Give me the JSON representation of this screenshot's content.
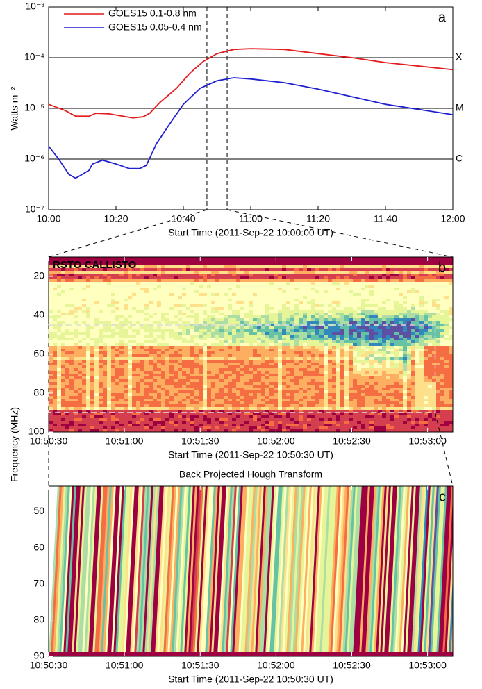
{
  "chart_data": [
    {
      "type": "line",
      "panel_label": "a",
      "log_y": true,
      "y_label": "Watts m⁻²",
      "x_label": "Start Time (2011-Sep-22 10:00:00 UT)",
      "xlim": [
        "10:00",
        "12:00"
      ],
      "xticks": [
        "10:00",
        "10:20",
        "10:40",
        "11:00",
        "11:20",
        "11:40",
        "12:00"
      ],
      "ylim": [
        1e-07,
        0.001
      ],
      "yticks": [
        {
          "value": 1e-07,
          "label": "10⁻⁷"
        },
        {
          "value": 1e-06,
          "label": "10⁻⁶"
        },
        {
          "value": 1e-05,
          "label": "10⁻⁵"
        },
        {
          "value": 0.0001,
          "label": "10⁻⁴"
        },
        {
          "value": 0.001,
          "label": "10⁻³"
        }
      ],
      "class_labels": [
        {
          "value": 0.0001,
          "label": "X"
        },
        {
          "value": 1e-05,
          "label": "M"
        },
        {
          "value": 1e-06,
          "label": "C"
        }
      ],
      "markers_x": [
        "10:47",
        "10:53"
      ],
      "series": [
        {
          "name": "GOES15 0.1-0.8 nm",
          "color": "#e41a1c",
          "x": [
            "10:00",
            "10:05",
            "10:08",
            "10:12",
            "10:14",
            "10:18",
            "10:22",
            "10:25",
            "10:28",
            "10:30",
            "10:33",
            "10:38",
            "10:42",
            "10:46",
            "10:50",
            "10:55",
            "11:00",
            "11:10",
            "11:20",
            "11:30",
            "11:40",
            "11:50",
            "12:00"
          ],
          "values": [
            1.2e-05,
            9e-06,
            7e-06,
            7e-06,
            8e-06,
            7.8e-06,
            7e-06,
            6.5e-06,
            6.8e-06,
            8e-06,
            1.3e-05,
            2.5e-05,
            5e-05,
            8.5e-05,
            0.00012,
            0.000145,
            0.00015,
            0.000145,
            0.00012,
            0.0001,
            8e-05,
            6.8e-05,
            5.8e-05
          ]
        },
        {
          "name": "GOES15 0.05-0.4 nm",
          "color": "#1f1fd0",
          "x": [
            "10:00",
            "10:03",
            "10:06",
            "10:08",
            "10:10",
            "10:12",
            "10:13",
            "10:16",
            "10:20",
            "10:24",
            "10:27",
            "10:29",
            "10:32",
            "10:36",
            "10:40",
            "10:45",
            "10:50",
            "10:55",
            "11:00",
            "11:10",
            "11:20",
            "11:30",
            "11:40",
            "11:50",
            "12:00"
          ],
          "values": [
            1.8e-06,
            1e-06,
            5e-07,
            4.2e-07,
            5e-07,
            6e-07,
            8e-07,
            9.5e-07,
            8e-07,
            6.5e-07,
            6.5e-07,
            7.5e-07,
            2e-06,
            5e-06,
            1.2e-05,
            2.5e-05,
            3.5e-05,
            4e-05,
            3.8e-05,
            3.2e-05,
            2.4e-05,
            1.7e-05,
            1.2e-05,
            9.5e-06,
            7.5e-06
          ]
        }
      ]
    },
    {
      "type": "heatmap",
      "panel_label": "b",
      "annotation": "RSTO CALLISTO",
      "x_label": "Start Time (2011-Sep-22 10:50:30 UT)",
      "xlim": [
        "10:50:30",
        "10:53:10"
      ],
      "xticks": [
        "10:50:30",
        "10:51:00",
        "10:51:30",
        "10:52:00",
        "10:52:30",
        "10:53:00"
      ],
      "ylim": [
        100,
        10
      ],
      "yticks": [
        20,
        40,
        60,
        80,
        100
      ],
      "highlight_xlim": [
        "10:50:30",
        "10:53:03"
      ],
      "highlight_ylim": [
        45,
        90
      ]
    },
    {
      "type": "heatmap",
      "panel_label": "c",
      "title": "Back Projected Hough Transform",
      "y_label": "Frequency (MHz)",
      "x_label": "Start Time (2011-Sep-22 10:50:30 UT)",
      "xlim": [
        "10:50:30",
        "10:53:10"
      ],
      "xticks": [
        "10:50:30",
        "10:51:00",
        "10:51:30",
        "10:52:00",
        "10:52:30",
        "10:53:00"
      ],
      "ylim": [
        90,
        43
      ],
      "yticks": [
        50,
        60,
        70,
        80,
        90
      ]
    }
  ]
}
